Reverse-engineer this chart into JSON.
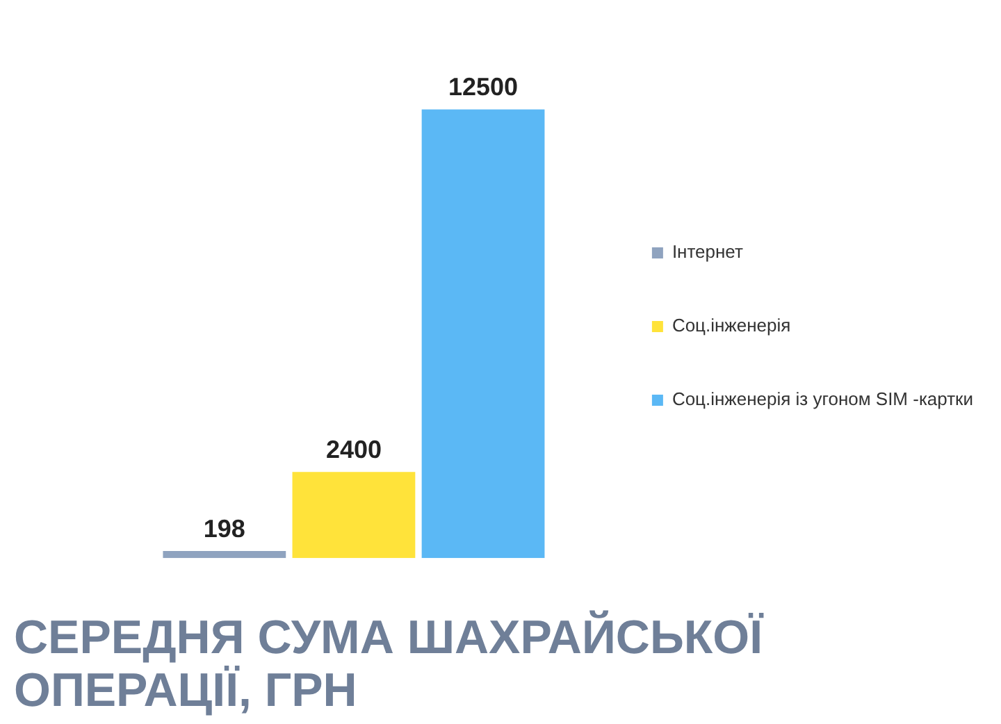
{
  "chart_data": {
    "type": "bar",
    "title": "СЕРЕДНЯ СУМА ШАХРАЙСЬКОЇ ОПЕРАЦІЇ, ГРН",
    "categories": [
      null
    ],
    "series": [
      {
        "name": "Інтернет",
        "color": "#8fa3bf",
        "values": [
          198
        ]
      },
      {
        "name": "Соц.інженерія",
        "color": "#ffe33a",
        "values": [
          2400
        ]
      },
      {
        "name": "Соц.інженерія із угоном SIM -картки",
        "color": "#5bb8f5",
        "values": [
          12500
        ]
      }
    ],
    "data_labels": true,
    "legend": "right",
    "grid": false
  }
}
